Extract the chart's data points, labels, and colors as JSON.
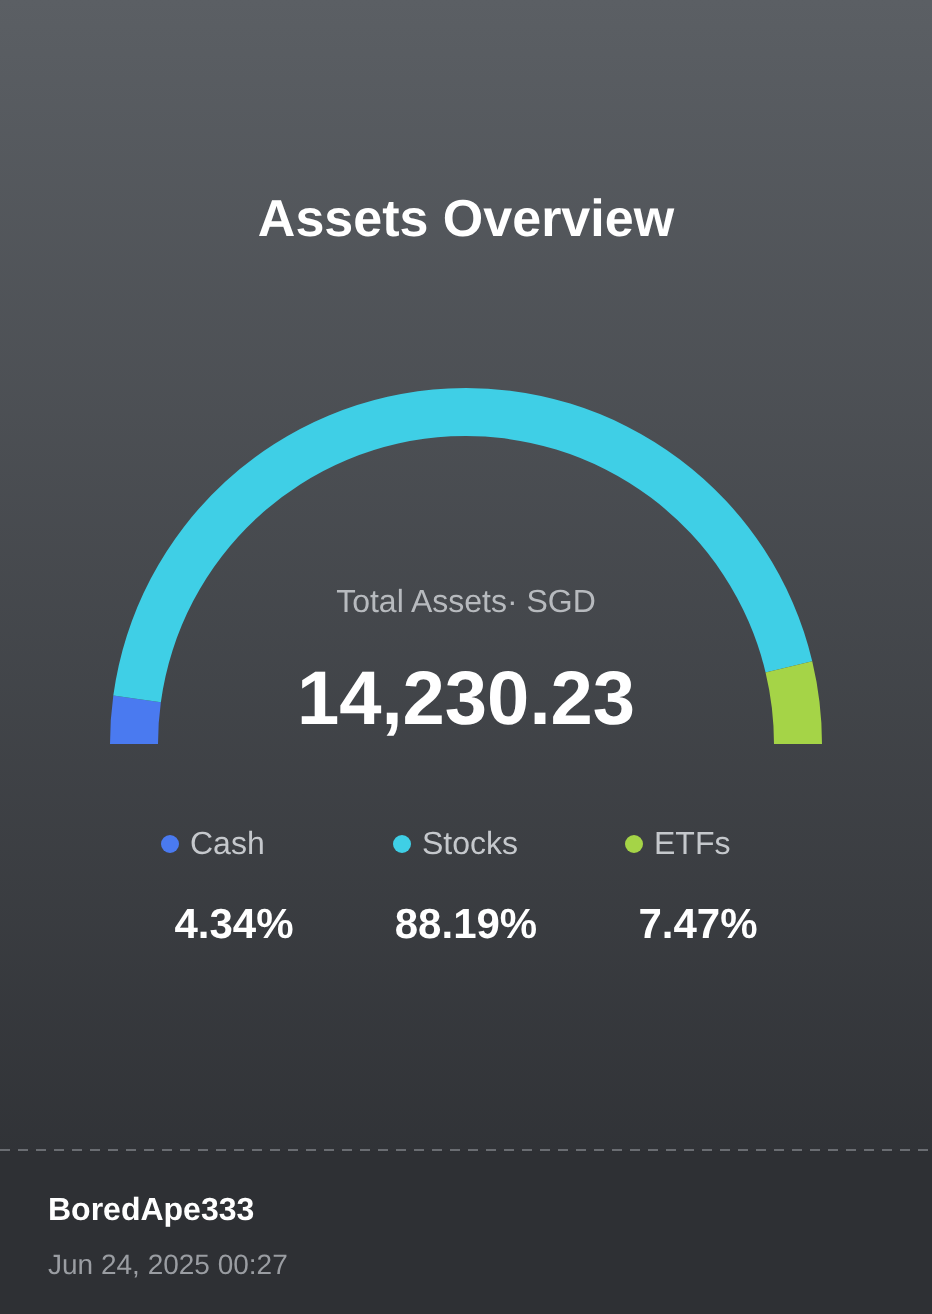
{
  "chart_data": {
    "type": "donut",
    "title": "Assets Overview",
    "categories": [
      "Cash",
      "Stocks",
      "ETFs"
    ],
    "values": [
      4.34,
      88.19,
      7.47
    ],
    "colors": [
      "#4a7af0",
      "#3fcfe6",
      "#a5d447"
    ],
    "value_labels": [
      "4.34%",
      "88.19%",
      "7.47%"
    ],
    "legend": "bottom",
    "annotations": [
      "Total Assets· SGD",
      "14,230.23",
      "BoredApe333",
      "Jun 24, 2025 00:27"
    ]
  }
}
